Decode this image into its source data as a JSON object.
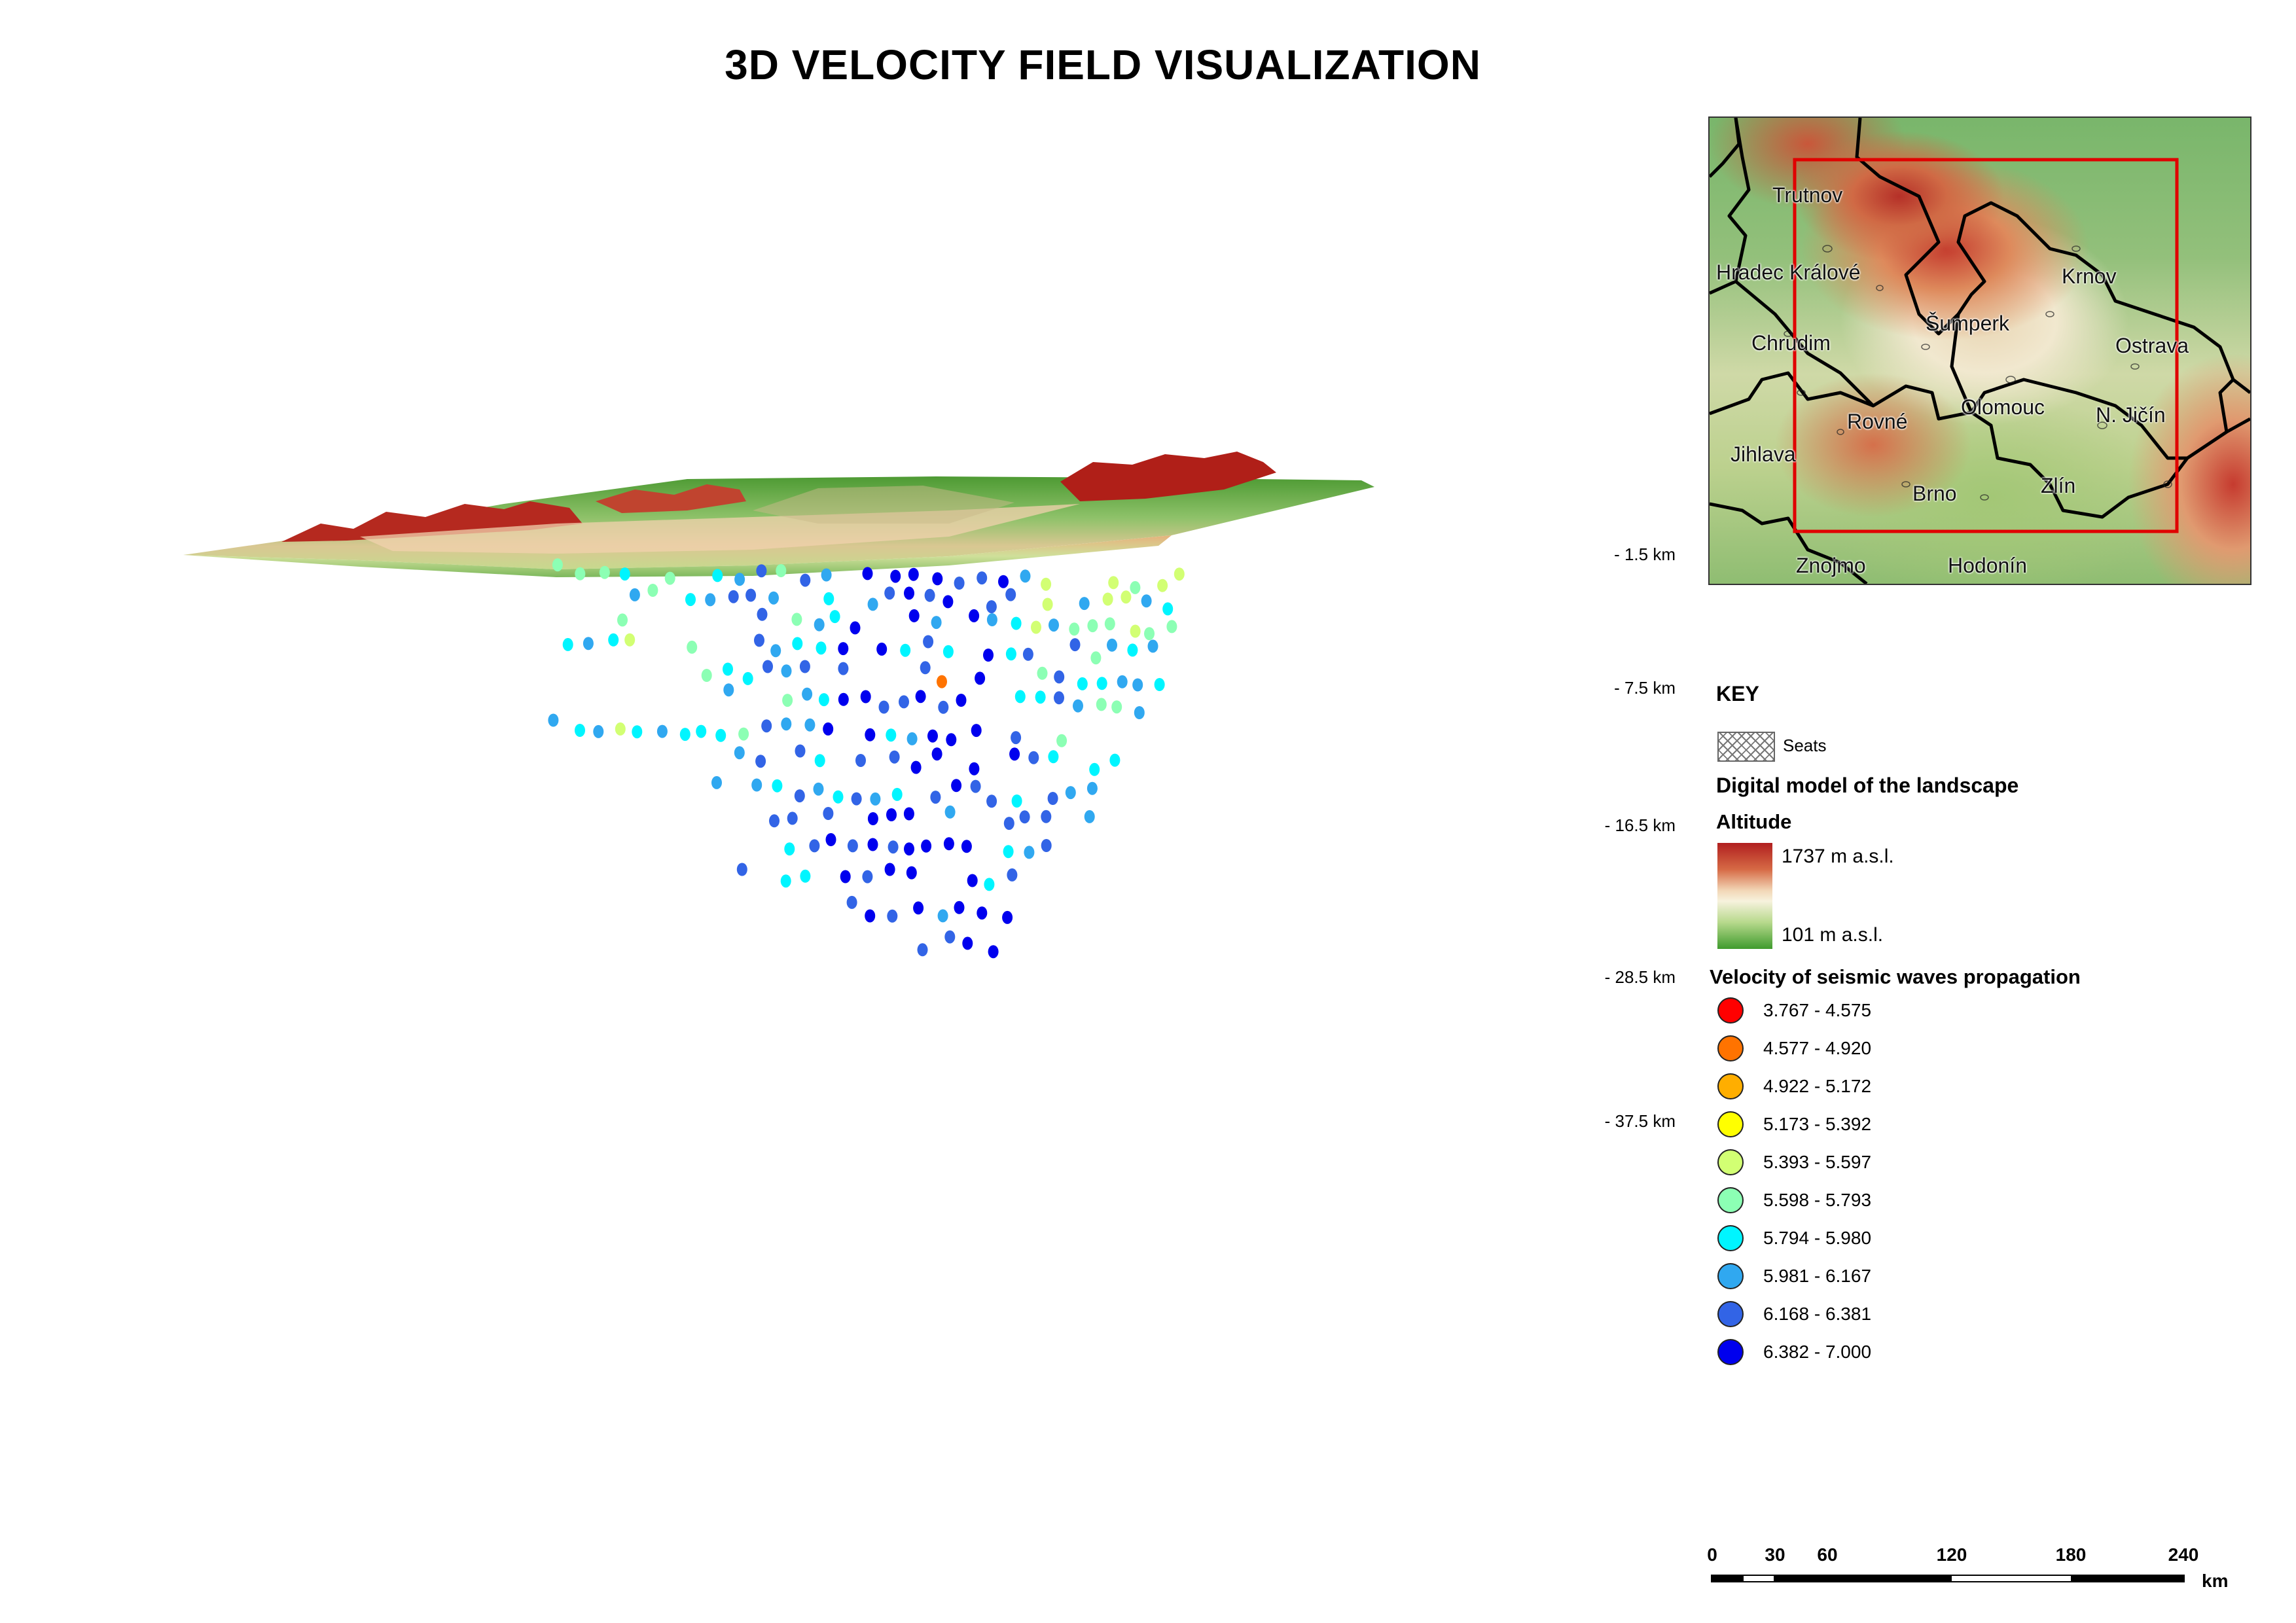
{
  "title": "3D VELOCITY FIELD VISUALIZATION",
  "depth_labels": [
    "- 1.5 km",
    "- 7.5 km",
    "- 16.5 km",
    "- 28.5 km",
    "- 37.5 km"
  ],
  "inset_map": {
    "cities": [
      "Trutnov",
      "Hradec Králové",
      "Krnov",
      "Šumperk",
      "Chrudim",
      "Ostrava",
      "Olomouc",
      "N. Jičín",
      "Rovné",
      "Jihlava",
      "Brno",
      "Zlín",
      "Znojmo",
      "Hodonín"
    ],
    "extent_box_color": "#e00000"
  },
  "legend": {
    "key_title": "KEY",
    "seats_label": "Seats",
    "dem_title": "Digital model of the landscape",
    "altitude_title": "Altitude",
    "altitude_max": "1737 m  a.s.l.",
    "altitude_min": "101 m  a.s.l.",
    "velocity_title": "Velocity of seismic waves propagation",
    "velocity_classes": [
      {
        "range": "3.767 - 4.575",
        "color": "#ff0000"
      },
      {
        "range": "4.577 - 4.920",
        "color": "#ff7300"
      },
      {
        "range": "4.922 - 5.172",
        "color": "#ffae00"
      },
      {
        "range": "5.173 - 5.392",
        "color": "#ffff00"
      },
      {
        "range": "5.393 - 5.597",
        "color": "#d2ff73"
      },
      {
        "range": "5.598 - 5.793",
        "color": "#8cffb4"
      },
      {
        "range": "5.794 - 5.980",
        "color": "#00f5ff"
      },
      {
        "range": "5.981 - 6.167",
        "color": "#30a8f0"
      },
      {
        "range": "6.168 - 6.381",
        "color": "#3264e6"
      },
      {
        "range": "6.382 - 7.000",
        "color": "#0000ee"
      }
    ]
  },
  "scale_bar": {
    "ticks": [
      "0",
      "30",
      "60",
      "120",
      "180",
      "240"
    ],
    "unit": "km"
  }
}
